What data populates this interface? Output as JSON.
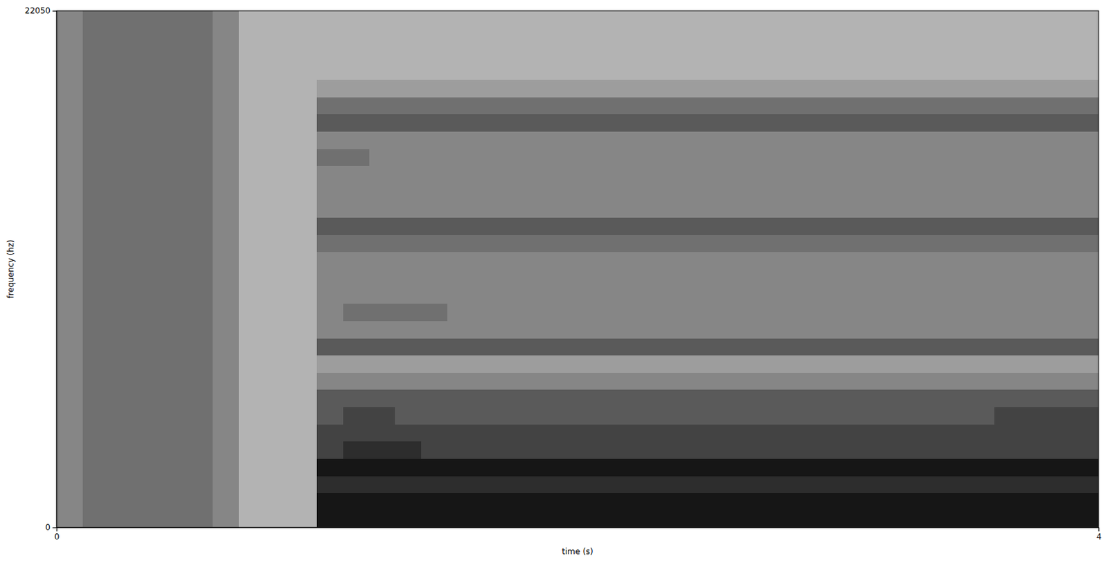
{
  "chart_data": {
    "type": "heatmap",
    "x_label": "time (s)",
    "y_label": "frequency (hz)",
    "xlim": [
      0,
      4
    ],
    "ylim": [
      0,
      22050
    ],
    "xticks": [
      0,
      4
    ],
    "yticks": [
      0,
      22050
    ],
    "clim": [
      0,
      10
    ],
    "cells": [
      [
        4,
        5,
        5,
        5,
        5,
        5,
        4,
        2,
        2,
        2,
        9,
        9,
        9,
        9,
        9,
        9,
        9,
        9,
        9,
        9,
        9,
        9,
        9,
        9,
        9,
        9,
        9,
        9,
        9,
        9,
        9,
        9,
        9,
        9,
        9,
        9,
        9,
        9,
        9,
        9
      ],
      [
        4,
        5,
        5,
        5,
        5,
        5,
        4,
        2,
        2,
        2,
        9,
        9,
        9,
        9,
        9,
        9,
        9,
        9,
        9,
        9,
        9,
        9,
        9,
        9,
        9,
        9,
        9,
        9,
        9,
        9,
        9,
        9,
        9,
        9,
        9,
        9,
        9,
        9,
        9,
        9
      ],
      [
        4,
        5,
        5,
        5,
        5,
        5,
        4,
        2,
        2,
        2,
        8,
        8,
        8,
        8,
        8,
        8,
        8,
        8,
        8,
        8,
        8,
        8,
        8,
        8,
        8,
        8,
        8,
        8,
        8,
        8,
        8,
        8,
        8,
        8,
        8,
        8,
        8,
        8,
        8,
        8
      ],
      [
        4,
        5,
        5,
        5,
        5,
        5,
        4,
        2,
        2,
        2,
        9,
        9,
        9,
        9,
        9,
        9,
        9,
        9,
        9,
        9,
        9,
        9,
        9,
        9,
        9,
        9,
        9,
        9,
        9,
        9,
        9,
        9,
        9,
        9,
        9,
        9,
        9,
        9,
        9,
        9
      ],
      [
        4,
        5,
        5,
        5,
        5,
        5,
        4,
        2,
        2,
        2,
        7,
        8,
        8,
        8,
        7,
        7,
        7,
        7,
        7,
        7,
        7,
        7,
        7,
        7,
        7,
        7,
        7,
        7,
        7,
        7,
        7,
        7,
        7,
        7,
        7,
        7,
        7,
        7,
        7,
        7
      ],
      [
        4,
        5,
        5,
        5,
        5,
        5,
        4,
        2,
        2,
        2,
        7,
        7,
        7,
        7,
        7,
        7,
        7,
        7,
        7,
        7,
        7,
        7,
        7,
        7,
        7,
        7,
        7,
        7,
        7,
        7,
        7,
        7,
        7,
        7,
        7,
        7,
        7,
        7,
        7,
        7
      ],
      [
        4,
        5,
        5,
        5,
        5,
        5,
        4,
        2,
        2,
        2,
        6,
        7,
        7,
        6,
        6,
        6,
        6,
        6,
        6,
        6,
        6,
        6,
        6,
        6,
        6,
        6,
        6,
        6,
        6,
        6,
        6,
        6,
        6,
        6,
        6,
        6,
        7,
        7,
        7,
        7
      ],
      [
        4,
        5,
        5,
        5,
        5,
        5,
        4,
        2,
        2,
        2,
        6,
        6,
        6,
        6,
        6,
        6,
        6,
        6,
        6,
        6,
        6,
        6,
        6,
        6,
        6,
        6,
        6,
        6,
        6,
        6,
        6,
        6,
        6,
        6,
        6,
        6,
        6,
        6,
        6,
        6
      ],
      [
        4,
        5,
        5,
        5,
        5,
        5,
        4,
        2,
        2,
        2,
        4,
        4,
        4,
        4,
        4,
        4,
        4,
        4,
        4,
        4,
        4,
        4,
        4,
        4,
        4,
        4,
        4,
        4,
        4,
        4,
        4,
        4,
        4,
        4,
        4,
        4,
        4,
        4,
        4,
        4
      ],
      [
        4,
        5,
        5,
        5,
        5,
        5,
        4,
        2,
        2,
        2,
        3,
        3,
        3,
        3,
        3,
        3,
        3,
        3,
        3,
        3,
        3,
        3,
        3,
        3,
        3,
        3,
        3,
        3,
        3,
        3,
        3,
        3,
        3,
        3,
        3,
        3,
        3,
        3,
        3,
        3
      ],
      [
        4,
        5,
        5,
        5,
        5,
        5,
        4,
        2,
        2,
        2,
        6,
        6,
        6,
        6,
        6,
        6,
        6,
        6,
        6,
        6,
        6,
        6,
        6,
        6,
        6,
        6,
        6,
        6,
        6,
        6,
        6,
        6,
        6,
        6,
        6,
        6,
        6,
        6,
        6,
        6
      ],
      [
        4,
        5,
        5,
        5,
        5,
        5,
        4,
        2,
        2,
        2,
        4,
        4,
        4,
        4,
        4,
        4,
        4,
        4,
        4,
        4,
        4,
        4,
        4,
        4,
        4,
        4,
        4,
        4,
        4,
        4,
        4,
        4,
        4,
        4,
        4,
        4,
        4,
        4,
        4,
        4
      ],
      [
        4,
        5,
        5,
        5,
        5,
        5,
        4,
        2,
        2,
        2,
        4,
        5,
        5,
        5,
        5,
        4,
        4,
        4,
        4,
        4,
        4,
        4,
        4,
        4,
        4,
        4,
        4,
        4,
        4,
        4,
        4,
        4,
        4,
        4,
        4,
        4,
        4,
        4,
        4,
        4
      ],
      [
        4,
        5,
        5,
        5,
        5,
        5,
        4,
        2,
        2,
        2,
        4,
        4,
        4,
        4,
        4,
        4,
        4,
        4,
        4,
        4,
        4,
        4,
        4,
        4,
        4,
        4,
        4,
        4,
        4,
        4,
        4,
        4,
        4,
        4,
        4,
        4,
        4,
        4,
        4,
        4
      ],
      [
        4,
        5,
        5,
        5,
        5,
        5,
        4,
        2,
        2,
        2,
        4,
        4,
        4,
        4,
        4,
        4,
        4,
        4,
        4,
        4,
        4,
        4,
        4,
        4,
        4,
        4,
        4,
        4,
        4,
        4,
        4,
        4,
        4,
        4,
        4,
        4,
        4,
        4,
        4,
        4
      ],
      [
        4,
        5,
        5,
        5,
        5,
        5,
        4,
        2,
        2,
        2,
        4,
        4,
        4,
        4,
        4,
        4,
        4,
        4,
        4,
        4,
        4,
        4,
        4,
        4,
        4,
        4,
        4,
        4,
        4,
        4,
        4,
        4,
        4,
        4,
        4,
        4,
        4,
        4,
        4,
        4
      ],
      [
        4,
        5,
        5,
        5,
        5,
        5,
        4,
        2,
        2,
        2,
        5,
        5,
        5,
        5,
        5,
        5,
        5,
        5,
        5,
        5,
        5,
        5,
        5,
        5,
        5,
        5,
        5,
        5,
        5,
        5,
        5,
        5,
        5,
        5,
        5,
        5,
        5,
        5,
        5,
        5
      ],
      [
        4,
        5,
        5,
        5,
        5,
        5,
        4,
        2,
        2,
        2,
        6,
        6,
        6,
        6,
        6,
        6,
        6,
        6,
        6,
        6,
        6,
        6,
        6,
        6,
        6,
        6,
        6,
        6,
        6,
        6,
        6,
        6,
        6,
        6,
        6,
        6,
        6,
        6,
        6,
        6
      ],
      [
        4,
        5,
        5,
        5,
        5,
        5,
        4,
        2,
        2,
        2,
        4,
        4,
        4,
        4,
        4,
        4,
        4,
        4,
        4,
        4,
        4,
        4,
        4,
        4,
        4,
        4,
        4,
        4,
        4,
        4,
        4,
        4,
        4,
        4,
        4,
        4,
        4,
        4,
        4,
        4
      ],
      [
        4,
        5,
        5,
        5,
        5,
        5,
        4,
        2,
        2,
        2,
        4,
        4,
        4,
        4,
        4,
        4,
        4,
        4,
        4,
        4,
        4,
        4,
        4,
        4,
        4,
        4,
        4,
        4,
        4,
        4,
        4,
        4,
        4,
        4,
        4,
        4,
        4,
        4,
        4,
        4
      ],
      [
        4,
        5,
        5,
        5,
        5,
        5,
        4,
        2,
        2,
        2,
        4,
        4,
        4,
        4,
        4,
        4,
        4,
        4,
        4,
        4,
        4,
        4,
        4,
        4,
        4,
        4,
        4,
        4,
        4,
        4,
        4,
        4,
        4,
        4,
        4,
        4,
        4,
        4,
        4,
        4
      ],
      [
        4,
        5,
        5,
        5,
        5,
        5,
        4,
        2,
        2,
        2,
        5,
        5,
        4,
        4,
        4,
        4,
        4,
        4,
        4,
        4,
        4,
        4,
        4,
        4,
        4,
        4,
        4,
        4,
        4,
        4,
        4,
        4,
        4,
        4,
        4,
        4,
        4,
        4,
        4,
        4
      ],
      [
        4,
        5,
        5,
        5,
        5,
        5,
        4,
        2,
        2,
        2,
        4,
        4,
        4,
        4,
        4,
        4,
        4,
        4,
        4,
        4,
        4,
        4,
        4,
        4,
        4,
        4,
        4,
        4,
        4,
        4,
        4,
        4,
        4,
        4,
        4,
        4,
        4,
        4,
        4,
        4
      ],
      [
        4,
        5,
        5,
        5,
        5,
        5,
        4,
        2,
        2,
        2,
        6,
        6,
        6,
        6,
        6,
        6,
        6,
        6,
        6,
        6,
        6,
        6,
        6,
        6,
        6,
        6,
        6,
        6,
        6,
        6,
        6,
        6,
        6,
        6,
        6,
        6,
        6,
        6,
        6,
        6
      ],
      [
        4,
        5,
        5,
        5,
        5,
        5,
        4,
        2,
        2,
        2,
        5,
        5,
        5,
        5,
        5,
        5,
        5,
        5,
        5,
        5,
        5,
        5,
        5,
        5,
        5,
        5,
        5,
        5,
        5,
        5,
        5,
        5,
        5,
        5,
        5,
        5,
        5,
        5,
        5,
        5
      ],
      [
        4,
        5,
        5,
        5,
        5,
        5,
        4,
        2,
        2,
        2,
        3,
        3,
        3,
        3,
        3,
        3,
        3,
        3,
        3,
        3,
        3,
        3,
        3,
        3,
        3,
        3,
        3,
        3,
        3,
        3,
        3,
        3,
        3,
        3,
        3,
        3,
        3,
        3,
        3,
        3
      ],
      [
        4,
        5,
        5,
        5,
        5,
        5,
        4,
        2,
        2,
        2,
        2,
        2,
        2,
        2,
        2,
        2,
        2,
        2,
        2,
        2,
        2,
        2,
        2,
        2,
        2,
        2,
        2,
        2,
        2,
        2,
        2,
        2,
        2,
        2,
        2,
        2,
        2,
        2,
        2,
        2
      ],
      [
        4,
        5,
        5,
        5,
        5,
        5,
        4,
        2,
        2,
        2,
        2,
        2,
        2,
        2,
        2,
        2,
        2,
        2,
        2,
        2,
        2,
        2,
        2,
        2,
        2,
        2,
        2,
        2,
        2,
        2,
        2,
        2,
        2,
        2,
        2,
        2,
        2,
        2,
        2,
        2
      ],
      [
        4,
        5,
        5,
        5,
        5,
        5,
        4,
        2,
        2,
        2,
        2,
        2,
        2,
        2,
        2,
        2,
        2,
        2,
        2,
        2,
        2,
        2,
        2,
        2,
        2,
        2,
        2,
        2,
        2,
        2,
        2,
        2,
        2,
        2,
        2,
        2,
        2,
        2,
        2,
        2
      ],
      [
        4,
        5,
        5,
        5,
        5,
        5,
        4,
        2,
        2,
        2,
        2,
        2,
        2,
        2,
        2,
        2,
        2,
        2,
        2,
        2,
        2,
        2,
        2,
        2,
        2,
        2,
        2,
        2,
        2,
        2,
        2,
        2,
        2,
        2,
        2,
        2,
        2,
        2,
        2,
        2
      ]
    ]
  }
}
